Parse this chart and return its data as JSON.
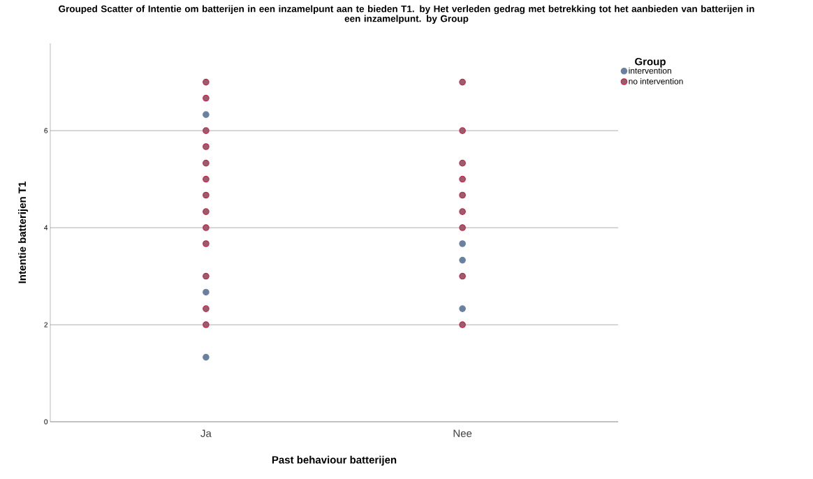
{
  "chart_data": {
    "type": "scatter",
    "title": "Grouped Scatter of Intentie om batterijen in een inzamelpunt aan te bieden T1. by Het verleden gedrag met betrekking tot het aanbieden van batterijen in een inzamelpunt. by Group",
    "xlabel": "Past behaviour batterijen",
    "ylabel": "Intentie batterijen T1",
    "legend_title": "Group",
    "categories": [
      "Ja",
      "Nee"
    ],
    "series": [
      {
        "name": "intervention",
        "color": "#6a80a0",
        "x": [
          "Ja",
          "Ja",
          "Ja",
          "Nee",
          "Nee",
          "Nee"
        ],
        "values": [
          6.33,
          2.67,
          1.33,
          3.67,
          3.33,
          2.33
        ]
      },
      {
        "name": "no intervention",
        "color": "#c8204a",
        "x": [
          "Ja",
          "Ja",
          "Ja",
          "Ja",
          "Ja",
          "Ja",
          "Ja",
          "Ja",
          "Ja",
          "Ja",
          "Ja",
          "Ja",
          "Ja",
          "Nee",
          "Nee",
          "Nee",
          "Nee",
          "Nee",
          "Nee",
          "Nee",
          "Nee",
          "Nee"
        ],
        "values": [
          7,
          6.67,
          6,
          5.67,
          5.33,
          5,
          4.67,
          4.33,
          4,
          3.67,
          3,
          2.33,
          2,
          7,
          6,
          5.33,
          5,
          4.67,
          4.33,
          4,
          3,
          2
        ]
      }
    ],
    "ylim": [
      0,
      7.8
    ],
    "yticks": [
      0,
      2,
      4,
      6
    ],
    "grid": "y",
    "legend": "top right",
    "marker": "circle"
  }
}
